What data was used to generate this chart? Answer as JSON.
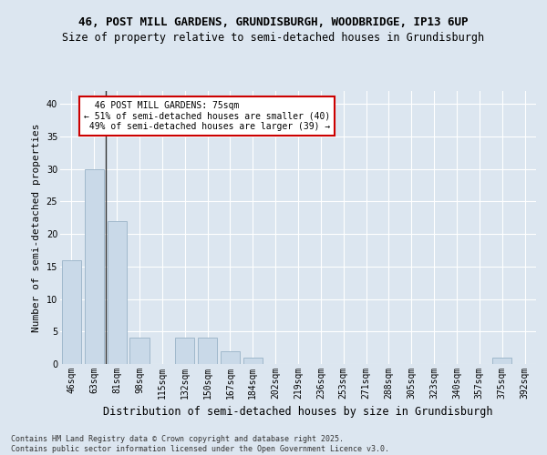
{
  "title_line1": "46, POST MILL GARDENS, GRUNDISBURGH, WOODBRIDGE, IP13 6UP",
  "title_line2": "Size of property relative to semi-detached houses in Grundisburgh",
  "xlabel": "Distribution of semi-detached houses by size in Grundisburgh",
  "ylabel": "Number of semi-detached properties",
  "categories": [
    "46sqm",
    "63sqm",
    "81sqm",
    "98sqm",
    "115sqm",
    "132sqm",
    "150sqm",
    "167sqm",
    "184sqm",
    "202sqm",
    "219sqm",
    "236sqm",
    "253sqm",
    "271sqm",
    "288sqm",
    "305sqm",
    "323sqm",
    "340sqm",
    "357sqm",
    "375sqm",
    "392sqm"
  ],
  "values": [
    16,
    30,
    22,
    4,
    0,
    4,
    4,
    2,
    1,
    0,
    0,
    0,
    0,
    0,
    0,
    0,
    0,
    0,
    0,
    1,
    0
  ],
  "bar_color": "#c9d9e8",
  "bar_edge_color": "#a0b8cc",
  "annotation_box_color": "#cc0000",
  "vline_color": "#333333",
  "background_color": "#dce6f0",
  "grid_color": "#ffffff",
  "footer": "Contains HM Land Registry data © Crown copyright and database right 2025.\nContains public sector information licensed under the Open Government Licence v3.0.",
  "ylim": [
    0,
    42
  ],
  "yticks": [
    0,
    5,
    10,
    15,
    20,
    25,
    30,
    35,
    40
  ],
  "subject_label": "46 POST MILL GARDENS: 75sqm",
  "pct_smaller": 51,
  "pct_smaller_n": 40,
  "pct_larger": 49,
  "pct_larger_n": 39,
  "title_fontsize": 9,
  "subtitle_fontsize": 8.5,
  "ylabel_fontsize": 8,
  "xlabel_fontsize": 8.5,
  "tick_fontsize": 7,
  "ann_fontsize": 7,
  "footer_fontsize": 6
}
